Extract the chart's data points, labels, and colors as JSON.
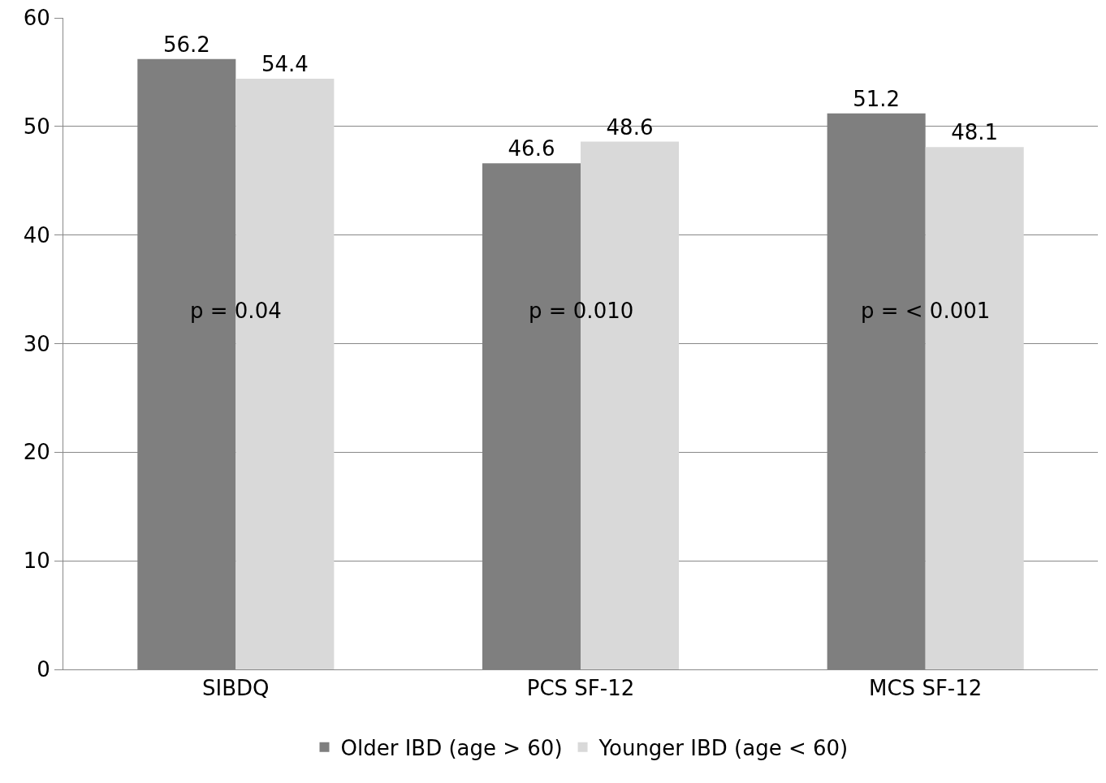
{
  "chart_data": {
    "type": "bar",
    "categories": [
      "SIBDQ",
      "PCS SF-12",
      "MCS SF-12"
    ],
    "series": [
      {
        "name": "Older IBD (age > 60)",
        "color": "#7f7f7f",
        "values": [
          56.2,
          46.6,
          51.2
        ]
      },
      {
        "name": "Younger IBD (age < 60)",
        "color": "#d9d9d9",
        "values": [
          54.4,
          48.6,
          48.1
        ]
      }
    ],
    "ylim": [
      0,
      60
    ],
    "yticks": [
      0,
      10,
      20,
      30,
      40,
      50,
      60
    ],
    "grid": "y",
    "legend": "bottom",
    "data_labels": true,
    "annotations": [
      {
        "text": "p = 0.04",
        "x": "SIBDQ",
        "y": 33
      },
      {
        "text": "p = 0.010",
        "x": "PCS SF-12",
        "y": 33
      },
      {
        "text": "p = < 0.001",
        "x": "MCS SF-12",
        "y": 33
      }
    ]
  }
}
